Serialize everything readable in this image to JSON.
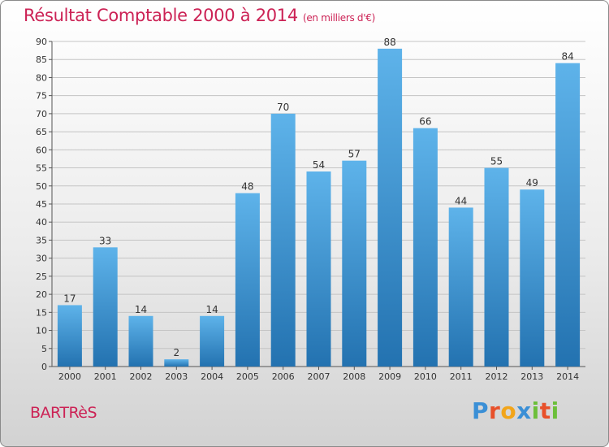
{
  "chart_data": {
    "type": "bar",
    "title": "Résultat Comptable 2000 à 2014",
    "unit_note": "(en milliers d'€)",
    "categories": [
      "2000",
      "2001",
      "2002",
      "2003",
      "2004",
      "2005",
      "2006",
      "2007",
      "2008",
      "2009",
      "2010",
      "2011",
      "2012",
      "2013",
      "2014"
    ],
    "values": [
      17,
      33,
      14,
      2,
      14,
      48,
      70,
      54,
      57,
      88,
      66,
      44,
      55,
      49,
      84
    ],
    "ylim": [
      0,
      90
    ],
    "ytick_step": 5,
    "xlabel": "",
    "ylabel": "",
    "grid": true,
    "bar_color_top": "#5eb3ea",
    "bar_color_bottom": "#2372b0"
  },
  "footer": {
    "commune": "BARTRèS",
    "brand_letters": [
      "P",
      "r",
      "o",
      "x",
      "i",
      "t",
      "i"
    ],
    "brand_colors": [
      "#3a8fd6",
      "#e8502a",
      "#f2a51a",
      "#3a8fd6",
      "#6cbf3a",
      "#e8502a",
      "#6cbf3a"
    ]
  }
}
